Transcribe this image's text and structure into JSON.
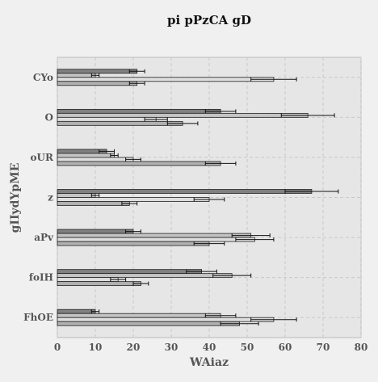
{
  "chart_data": {
    "type": "bar",
    "orientation": "horizontal",
    "title": "pi pPzCA gD",
    "xlabel": "WAiaz",
    "ylabel": "gIIydYpME",
    "xlim": [
      0,
      80
    ],
    "xticks": [
      0,
      10,
      20,
      30,
      40,
      50,
      60,
      70,
      80
    ],
    "grid": true,
    "legend": "none",
    "categories": [
      "CYo",
      "O",
      "oUR",
      "z",
      "aPv",
      "foIH",
      "FhOE"
    ],
    "series": [
      {
        "color": "#808080",
        "values": [
          21,
          43,
          13,
          67,
          20,
          38,
          10
        ],
        "errors": [
          2,
          4,
          2,
          7,
          2,
          4,
          1
        ]
      },
      {
        "color": "#c4c4c4",
        "values": [
          10,
          66,
          15,
          10,
          51,
          46,
          43
        ],
        "errors": [
          1,
          7,
          1,
          1,
          5,
          5,
          4
        ]
      },
      {
        "color": "#dedede",
        "values": [
          57,
          26,
          20,
          40,
          52,
          16,
          57
        ],
        "errors": [
          6,
          3,
          2,
          4,
          5,
          2,
          6
        ]
      },
      {
        "color": "#b0b0b0",
        "values": [
          21,
          33,
          43,
          19,
          40,
          22,
          48
        ],
        "errors": [
          2,
          4,
          4,
          2,
          4,
          2,
          5
        ]
      }
    ]
  }
}
